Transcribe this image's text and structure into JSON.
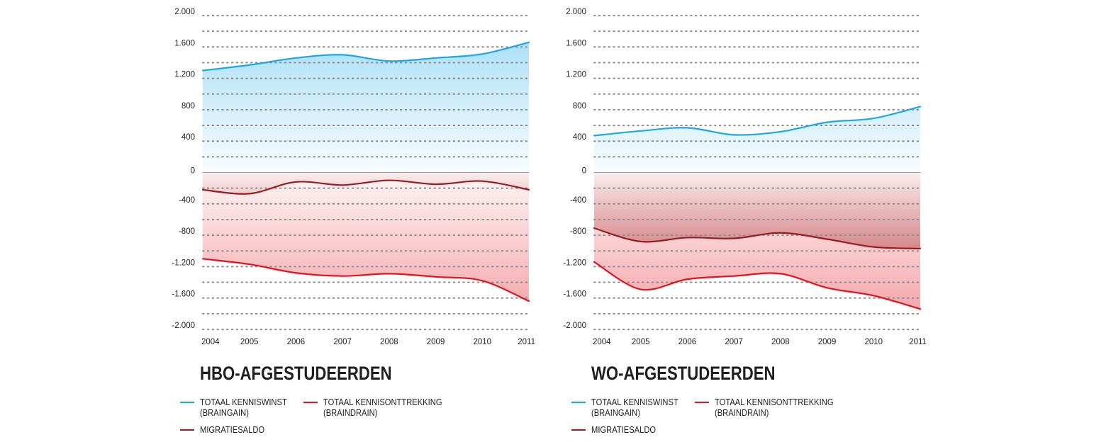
{
  "colors": {
    "braingain": "#1aa7ec",
    "braindrain": "#e3141f",
    "saldo": "#9b1b1f",
    "grid": "#8c8c8c"
  },
  "legend": {
    "braingain": "TOTAAL KENNISWINST\n(BRAINGAIN)",
    "braindrain": "TOTAAL KENNISONTTREKKING\n(BRAINDRAIN)",
    "saldo": "MIGRATIESALDO"
  },
  "chart_data": [
    {
      "type": "area",
      "title": "HBO-AFGESTUDEERDEN",
      "x": [
        2004,
        2005,
        2006,
        2007,
        2008,
        2009,
        2010,
        2011
      ],
      "x_tick_labels": [
        "2004",
        "2005",
        "2006",
        "2007",
        "2008",
        "2009",
        "2010",
        "2011"
      ],
      "ylim": [
        -2000,
        2000
      ],
      "y_tick_values": [
        2000,
        1600,
        1200,
        800,
        400,
        0,
        -400,
        -800,
        -1200,
        -1600,
        -2000
      ],
      "y_tick_labels": [
        "2.000",
        "1.600",
        "1.200",
        "800",
        "400",
        "0",
        "-400",
        "-800",
        "-1.200",
        "-1.600",
        "-2.000"
      ],
      "grid": true,
      "series": [
        {
          "name": "TOTAAL KENNISWINST (BRAINGAIN)",
          "key": "braingain",
          "values": [
            1300,
            1370,
            1460,
            1500,
            1420,
            1460,
            1510,
            1660
          ]
        },
        {
          "name": "TOTAAL KENNISONTTREKKING (BRAINDRAIN)",
          "key": "braindrain",
          "values": [
            -1100,
            -1170,
            -1280,
            -1320,
            -1290,
            -1330,
            -1380,
            -1640
          ]
        },
        {
          "name": "MIGRATIESALDO",
          "key": "saldo",
          "values": [
            -220,
            -270,
            -120,
            -160,
            -100,
            -150,
            -110,
            -220
          ]
        }
      ]
    },
    {
      "type": "area",
      "title": "WO-AFGESTUDEERDEN",
      "x": [
        2004,
        2005,
        2006,
        2007,
        2008,
        2009,
        2010,
        2011
      ],
      "x_tick_labels": [
        "2004",
        "2005",
        "2006",
        "2007",
        "2008",
        "2009",
        "2010",
        "2011"
      ],
      "ylim": [
        -2000,
        2000
      ],
      "y_tick_values": [
        2000,
        1600,
        1200,
        800,
        400,
        0,
        -400,
        -800,
        -1200,
        -1600,
        -2000
      ],
      "y_tick_labels": [
        "2.000",
        "1.600",
        "1.200",
        "800",
        "400",
        "0",
        "-400",
        "-800",
        "-1.200",
        "-1.600",
        "-2.000"
      ],
      "grid": true,
      "series": [
        {
          "name": "TOTAAL KENNISWINST (BRAINGAIN)",
          "key": "braingain",
          "values": [
            470,
            530,
            570,
            480,
            520,
            640,
            690,
            840
          ]
        },
        {
          "name": "TOTAAL KENNISONTTREKKING (BRAINDRAIN)",
          "key": "braindrain",
          "values": [
            -1140,
            -1490,
            -1360,
            -1320,
            -1290,
            -1470,
            -1570,
            -1740
          ]
        },
        {
          "name": "MIGRATIESALDO",
          "key": "saldo",
          "values": [
            -710,
            -880,
            -830,
            -840,
            -770,
            -850,
            -950,
            -970
          ]
        }
      ]
    }
  ]
}
